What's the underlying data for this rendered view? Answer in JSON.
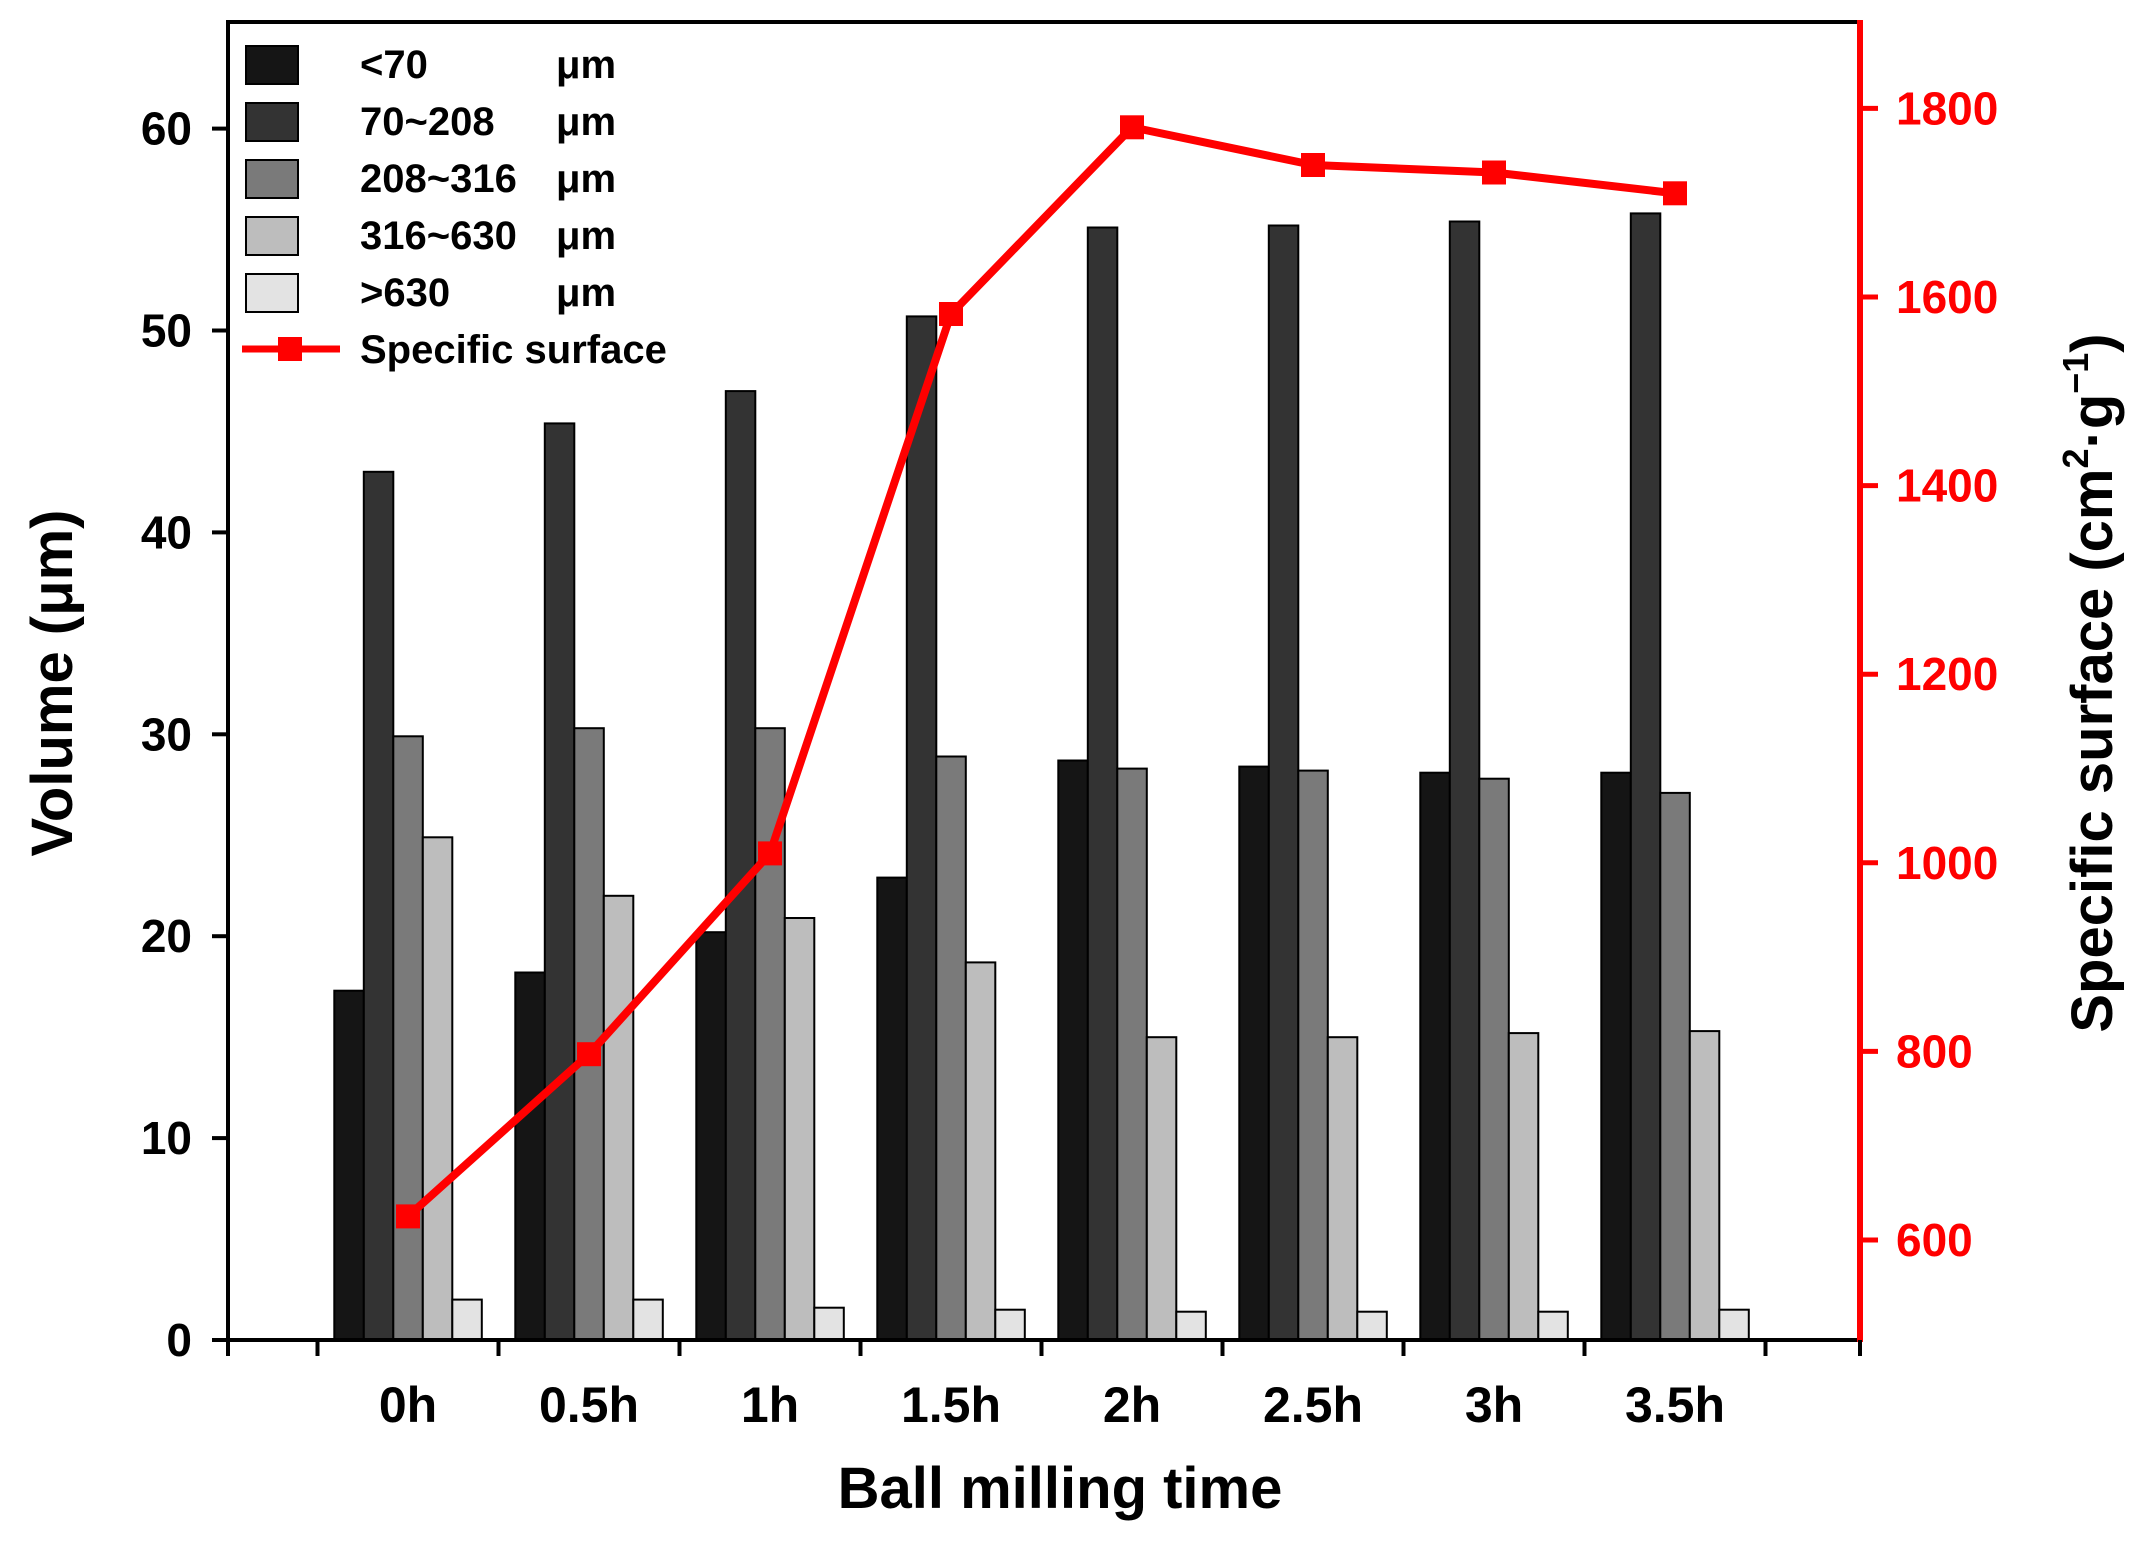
{
  "chart_data": {
    "type": "bar",
    "categories": [
      "0h",
      "0.5h",
      "1h",
      "1.5h",
      "2h",
      "2.5h",
      "3h",
      "3.5h"
    ],
    "xlabel": "Ball milling time",
    "ylabel": "Volume (μm)",
    "ylim": [
      0,
      65
    ],
    "yticks": [
      0,
      10,
      20,
      30,
      40,
      50,
      60
    ],
    "y2label_main": "Specific surface (cm",
    "y2label_sup1": "2",
    "y2label_mid": "·g",
    "y2label_sup2": "−1",
    "y2label_end": ")",
    "y2lim": [
      500,
      1950
    ],
    "y2ticks": [
      600,
      800,
      1000,
      1200,
      1400,
      1600,
      1800
    ],
    "legend_position": "top-left",
    "series": [
      {
        "name": "<70",
        "unit": "μm",
        "color": "#151515",
        "values": [
          17.3,
          18.2,
          20.2,
          22.9,
          28.7,
          28.4,
          28.1,
          28.1
        ]
      },
      {
        "name": "70~208",
        "unit": "μm",
        "color": "#333333",
        "values": [
          43.0,
          45.4,
          47.0,
          50.7,
          55.1,
          55.2,
          55.4,
          55.8
        ]
      },
      {
        "name": "208~316",
        "unit": "μm",
        "color": "#7a7a7a",
        "values": [
          29.9,
          30.3,
          30.3,
          28.9,
          28.3,
          28.2,
          27.8,
          27.1
        ]
      },
      {
        "name": "316~630",
        "unit": "μm",
        "color": "#bdbdbd",
        "values": [
          24.9,
          22.0,
          20.9,
          18.7,
          15.0,
          15.0,
          15.2,
          15.3
        ]
      },
      {
        "name": ">630",
        "unit": "μm",
        "color": "#e3e3e3",
        "values": [
          2.0,
          2.0,
          1.6,
          1.5,
          1.4,
          1.4,
          1.4,
          1.5
        ]
      }
    ],
    "line_series": {
      "name": "Specific surface",
      "color": "#ff0000",
      "axis": "right",
      "values": [
        625,
        797,
        1010,
        1582,
        1780,
        1740,
        1732,
        1710
      ]
    }
  }
}
